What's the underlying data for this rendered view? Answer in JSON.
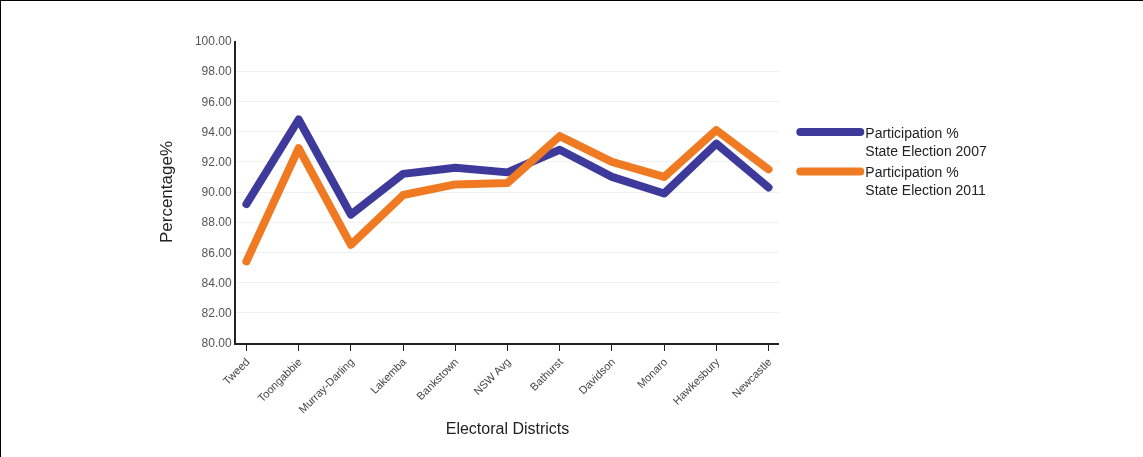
{
  "chart_data": {
    "type": "line",
    "xlabel": "Electoral Districts",
    "ylabel": "Percentage%",
    "categories": [
      "Tweed",
      "Toongabbie",
      "Murray-Darling",
      "Lakemba",
      "Bankstown",
      "NSW Avg",
      "Bathurst",
      "Davidson",
      "Monaro",
      "Hawkesbury",
      "Newcastle"
    ],
    "series": [
      {
        "name": "Participation %\nState Election 2007",
        "color": "#3d3a9c",
        "values": [
          89.2,
          94.8,
          88.5,
          91.2,
          91.6,
          91.3,
          92.8,
          91.0,
          89.9,
          93.2,
          90.3
        ]
      },
      {
        "name": "Participation %\nState Election 2011",
        "color": "#f07a22",
        "values": [
          85.4,
          92.9,
          86.5,
          89.8,
          90.5,
          90.6,
          93.7,
          92.0,
          91.0,
          94.1,
          91.5
        ]
      }
    ],
    "ylim": [
      80,
      100
    ],
    "yticks": [
      {
        "value": 80,
        "label": "80.00"
      },
      {
        "value": 82,
        "label": "82.00"
      },
      {
        "value": 84,
        "label": "84.00"
      },
      {
        "value": 86,
        "label": "86.00"
      },
      {
        "value": 88,
        "label": "88.00"
      },
      {
        "value": 90,
        "label": "90.00"
      },
      {
        "value": 92,
        "label": "92.00"
      },
      {
        "value": 94,
        "label": "94.00"
      },
      {
        "value": 96,
        "label": "96.00"
      },
      {
        "value": 98,
        "label": "98.00"
      },
      {
        "value": 100,
        "label": "100.00"
      }
    ],
    "grid": "y",
    "legend": "right",
    "line_style": "solid"
  }
}
